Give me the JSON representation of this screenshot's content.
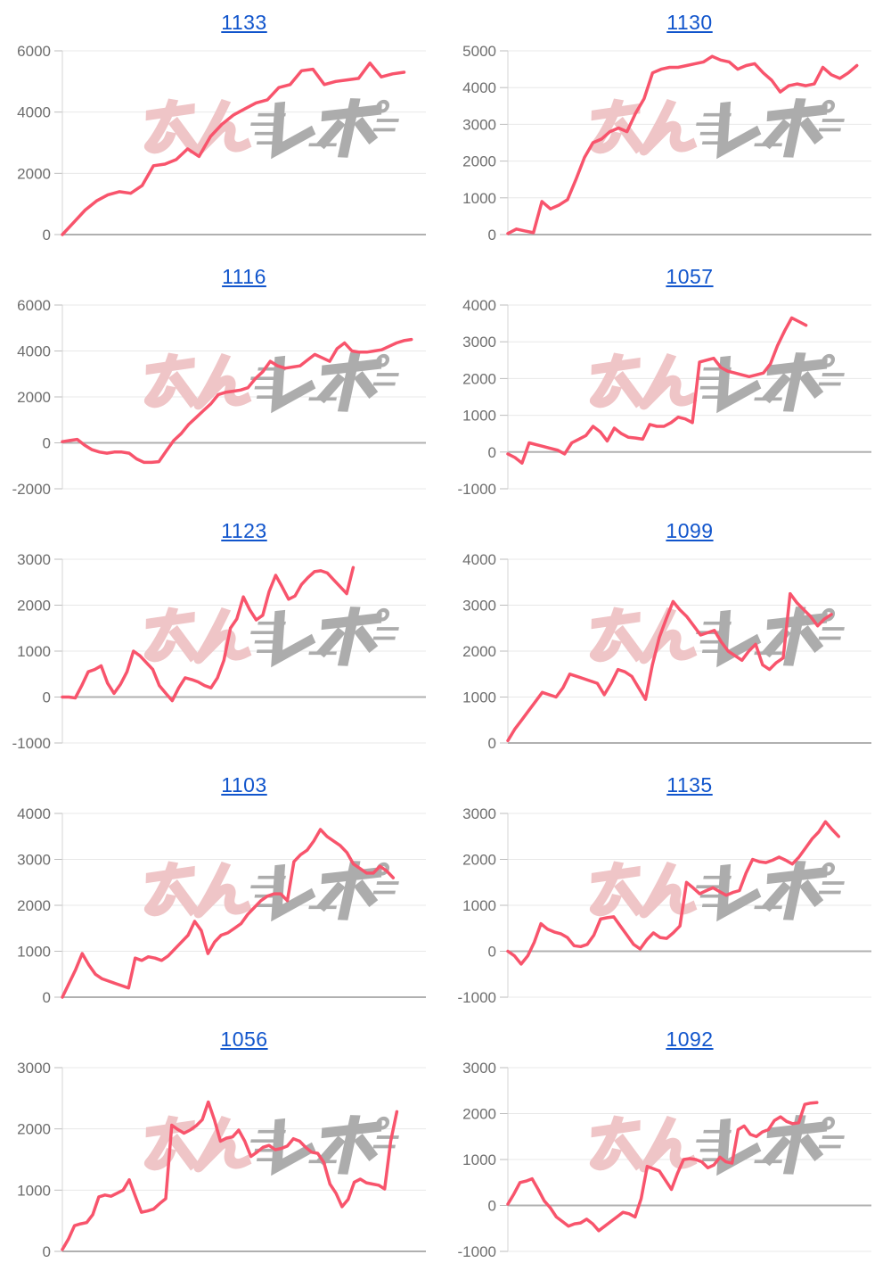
{
  "watermark": {
    "text": "みんレポ",
    "part1": "みん",
    "part2": "レポ",
    "part1_color": "#EFC5C7",
    "part2_color": "#ACACAC"
  },
  "styles": {
    "line_color": "#F8546C",
    "title_color": "#1155CC",
    "label_color": "#6E6E6E",
    "grid_color": "#E8E8E8",
    "zero_line_color": "#B0B0B0",
    "axis_color": "#D4D4D4",
    "tick_color": "#BDBDBD"
  },
  "chart_data": [
    {
      "type": "line",
      "title": "1133",
      "ylim": [
        0,
        6000
      ],
      "ytick_step": 2000,
      "grid": true,
      "legend": false,
      "x_coverage": 0.94,
      "values": [
        0,
        400,
        800,
        1100,
        1300,
        1400,
        1350,
        1600,
        2250,
        2300,
        2450,
        2800,
        2550,
        3200,
        3600,
        3900,
        4100,
        4300,
        4400,
        4800,
        4900,
        5350,
        5400,
        4900,
        5000,
        5050,
        5100,
        5600,
        5150,
        5250,
        5300
      ]
    },
    {
      "type": "line",
      "title": "1130",
      "ylim": [
        0,
        5000
      ],
      "ytick_step": 1000,
      "grid": true,
      "legend": false,
      "x_coverage": 0.96,
      "values": [
        30,
        150,
        100,
        50,
        900,
        700,
        800,
        950,
        1500,
        2100,
        2500,
        2600,
        2800,
        2900,
        2800,
        3300,
        3700,
        4400,
        4500,
        4550,
        4550,
        4600,
        4650,
        4700,
        4850,
        4750,
        4700,
        4500,
        4600,
        4650,
        4400,
        4200,
        3880,
        4050,
        4100,
        4050,
        4100,
        4550,
        4350,
        4250,
        4400,
        4600
      ]
    },
    {
      "type": "line",
      "title": "1116",
      "ylim": [
        -2000,
        6000
      ],
      "ytick_step": 2000,
      "grid": true,
      "legend": false,
      "x_coverage": 0.96,
      "values": [
        50,
        100,
        150,
        -100,
        -300,
        -400,
        -450,
        -400,
        -400,
        -450,
        -700,
        -850,
        -850,
        -820,
        -350,
        100,
        400,
        800,
        1100,
        1400,
        1700,
        2100,
        2200,
        2250,
        2300,
        2400,
        2800,
        3100,
        3550,
        3350,
        3250,
        3300,
        3350,
        3600,
        3850,
        3700,
        3550,
        4100,
        4350,
        4000,
        3950,
        3950,
        4000,
        4050,
        4200,
        4350,
        4450,
        4500
      ]
    },
    {
      "type": "line",
      "title": "1057",
      "ylim": [
        -1000,
        4000
      ],
      "ytick_step": 1000,
      "grid": true,
      "legend": false,
      "x_coverage": 0.82,
      "values": [
        -50,
        -150,
        -300,
        250,
        200,
        150,
        100,
        50,
        -50,
        250,
        350,
        450,
        700,
        550,
        300,
        650,
        500,
        400,
        380,
        350,
        750,
        700,
        700,
        800,
        950,
        900,
        800,
        2450,
        2500,
        2550,
        2300,
        2200,
        2150,
        2100,
        2050,
        2100,
        2150,
        2400,
        2900,
        3300,
        3650,
        3550,
        3450
      ]
    },
    {
      "type": "line",
      "title": "1123",
      "ylim": [
        -1000,
        3000
      ],
      "ytick_step": 1000,
      "grid": true,
      "legend": false,
      "x_coverage": 0.8,
      "values": [
        0,
        0,
        -20,
        250,
        550,
        600,
        680,
        300,
        80,
        280,
        550,
        1000,
        900,
        750,
        600,
        250,
        80,
        -80,
        200,
        420,
        380,
        330,
        250,
        200,
        420,
        800,
        1500,
        1700,
        2180,
        1900,
        1680,
        1780,
        2300,
        2650,
        2400,
        2130,
        2200,
        2450,
        2600,
        2730,
        2750,
        2700,
        2550,
        2400,
        2250,
        2820
      ]
    },
    {
      "type": "line",
      "title": "1099",
      "ylim": [
        0,
        4000
      ],
      "ytick_step": 1000,
      "grid": true,
      "legend": false,
      "x_coverage": 0.89,
      "values": [
        50,
        300,
        500,
        700,
        900,
        1100,
        1050,
        1000,
        1200,
        1500,
        1450,
        1400,
        1350,
        1300,
        1050,
        1300,
        1600,
        1550,
        1450,
        1200,
        950,
        1700,
        2300,
        2700,
        3080,
        2900,
        2750,
        2550,
        2350,
        2400,
        2450,
        2200,
        2000,
        1900,
        1800,
        2000,
        2150,
        1700,
        1600,
        1750,
        1850,
        3250,
        3050,
        2900,
        2750,
        2550,
        2700,
        2800
      ]
    },
    {
      "type": "line",
      "title": "1103",
      "ylim": [
        0,
        4000
      ],
      "ytick_step": 1000,
      "grid": true,
      "legend": false,
      "x_coverage": 0.91,
      "values": [
        0,
        300,
        600,
        950,
        700,
        500,
        400,
        350,
        300,
        250,
        200,
        850,
        800,
        880,
        850,
        800,
        900,
        1050,
        1200,
        1350,
        1650,
        1450,
        950,
        1200,
        1350,
        1400,
        1500,
        1600,
        1800,
        1950,
        2100,
        2200,
        2250,
        2250,
        2100,
        2950,
        3100,
        3200,
        3400,
        3650,
        3500,
        3400,
        3300,
        3150,
        2900,
        2800,
        2700,
        2700,
        2850,
        2750,
        2600
      ]
    },
    {
      "type": "line",
      "title": "1135",
      "ylim": [
        -1000,
        3000
      ],
      "ytick_step": 1000,
      "grid": true,
      "legend": false,
      "x_coverage": 0.91,
      "values": [
        0,
        -100,
        -280,
        -100,
        200,
        600,
        480,
        420,
        380,
        300,
        120,
        100,
        150,
        350,
        700,
        730,
        750,
        550,
        350,
        150,
        50,
        250,
        400,
        300,
        280,
        400,
        550,
        1500,
        1380,
        1250,
        1320,
        1380,
        1300,
        1220,
        1280,
        1320,
        1700,
        2000,
        1950,
        1930,
        1980,
        2050,
        1980,
        1900,
        2050,
        2250,
        2450,
        2600,
        2820,
        2650,
        2500
      ]
    },
    {
      "type": "line",
      "title": "1056",
      "ylim": [
        0,
        3000
      ],
      "ytick_step": 1000,
      "grid": true,
      "legend": false,
      "x_coverage": 0.92,
      "values": [
        30,
        200,
        420,
        450,
        470,
        600,
        890,
        920,
        900,
        950,
        1000,
        1170,
        900,
        640,
        660,
        690,
        780,
        860,
        2060,
        1990,
        1930,
        1980,
        2050,
        2150,
        2440,
        2150,
        1800,
        1850,
        1870,
        1980,
        1800,
        1550,
        1620,
        1700,
        1730,
        1660,
        1680,
        1720,
        1840,
        1800,
        1700,
        1620,
        1600,
        1450,
        1100,
        950,
        730,
        850,
        1130,
        1180,
        1120,
        1100,
        1080,
        1020,
        1800,
        2280
      ]
    },
    {
      "type": "line",
      "title": "1092",
      "ylim": [
        -1000,
        3000
      ],
      "ytick_step": 1000,
      "grid": true,
      "legend": false,
      "x_coverage": 0.85,
      "values": [
        30,
        250,
        500,
        530,
        580,
        350,
        100,
        -50,
        -250,
        -350,
        -450,
        -400,
        -380,
        -300,
        -400,
        -550,
        -450,
        -350,
        -250,
        -150,
        -180,
        -250,
        150,
        850,
        800,
        750,
        550,
        350,
        700,
        1000,
        1020,
        1000,
        950,
        820,
        880,
        1050,
        950,
        920,
        1650,
        1730,
        1550,
        1500,
        1600,
        1650,
        1850,
        1930,
        1830,
        1780,
        1800,
        2200,
        2230,
        2240
      ]
    }
  ]
}
